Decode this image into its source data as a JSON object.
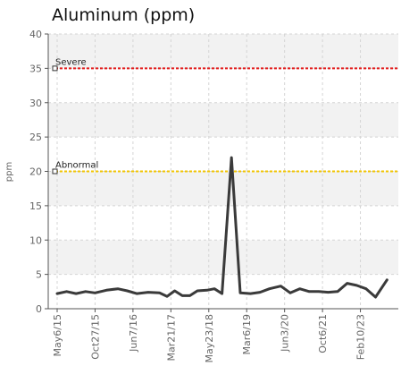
{
  "chart_data": {
    "type": "line",
    "title": "Aluminum (ppm)",
    "ylabel": "ppm",
    "xlabel": "",
    "ylim": [
      0,
      40
    ],
    "yticks": [
      0,
      5,
      10,
      15,
      20,
      25,
      30,
      35,
      40
    ],
    "xtick_labels": [
      "May6/15",
      "Oct27/15",
      "Jun7/16",
      "Mar21/17",
      "May23/18",
      "Mar6/19",
      "Jun3/20",
      "Oct6/21",
      "Feb10/23"
    ],
    "grid": true,
    "thresholds": [
      {
        "name": "Severe",
        "value": 35,
        "color": "#e11b1b"
      },
      {
        "name": "Abnormal",
        "value": 20,
        "color": "#f2c500"
      }
    ],
    "series": [
      {
        "color": "#3a3a3a",
        "points": [
          {
            "x": 0.0,
            "y": 2.2
          },
          {
            "x": 0.25,
            "y": 2.5
          },
          {
            "x": 0.5,
            "y": 2.2
          },
          {
            "x": 0.75,
            "y": 2.5
          },
          {
            "x": 1.0,
            "y": 2.3
          },
          {
            "x": 1.3,
            "y": 2.7
          },
          {
            "x": 1.6,
            "y": 2.9
          },
          {
            "x": 1.85,
            "y": 2.6
          },
          {
            "x": 2.1,
            "y": 2.2
          },
          {
            "x": 2.4,
            "y": 2.4
          },
          {
            "x": 2.7,
            "y": 2.3
          },
          {
            "x": 2.9,
            "y": 1.8
          },
          {
            "x": 3.1,
            "y": 2.6
          },
          {
            "x": 3.3,
            "y": 1.9
          },
          {
            "x": 3.5,
            "y": 1.9
          },
          {
            "x": 3.7,
            "y": 2.6
          },
          {
            "x": 3.95,
            "y": 2.7
          },
          {
            "x": 4.15,
            "y": 2.9
          },
          {
            "x": 4.35,
            "y": 2.2
          },
          {
            "x": 4.6,
            "y": 22.0
          },
          {
            "x": 4.83,
            "y": 2.3
          },
          {
            "x": 5.1,
            "y": 2.2
          },
          {
            "x": 5.35,
            "y": 2.4
          },
          {
            "x": 5.6,
            "y": 2.9
          },
          {
            "x": 5.9,
            "y": 3.3
          },
          {
            "x": 6.15,
            "y": 2.3
          },
          {
            "x": 6.4,
            "y": 2.9
          },
          {
            "x": 6.65,
            "y": 2.5
          },
          {
            "x": 6.9,
            "y": 2.5
          },
          {
            "x": 7.15,
            "y": 2.4
          },
          {
            "x": 7.4,
            "y": 2.5
          },
          {
            "x": 7.65,
            "y": 3.7
          },
          {
            "x": 7.9,
            "y": 3.4
          },
          {
            "x": 8.15,
            "y": 2.9
          },
          {
            "x": 8.4,
            "y": 1.7
          },
          {
            "x": 8.7,
            "y": 4.2
          }
        ]
      }
    ]
  }
}
